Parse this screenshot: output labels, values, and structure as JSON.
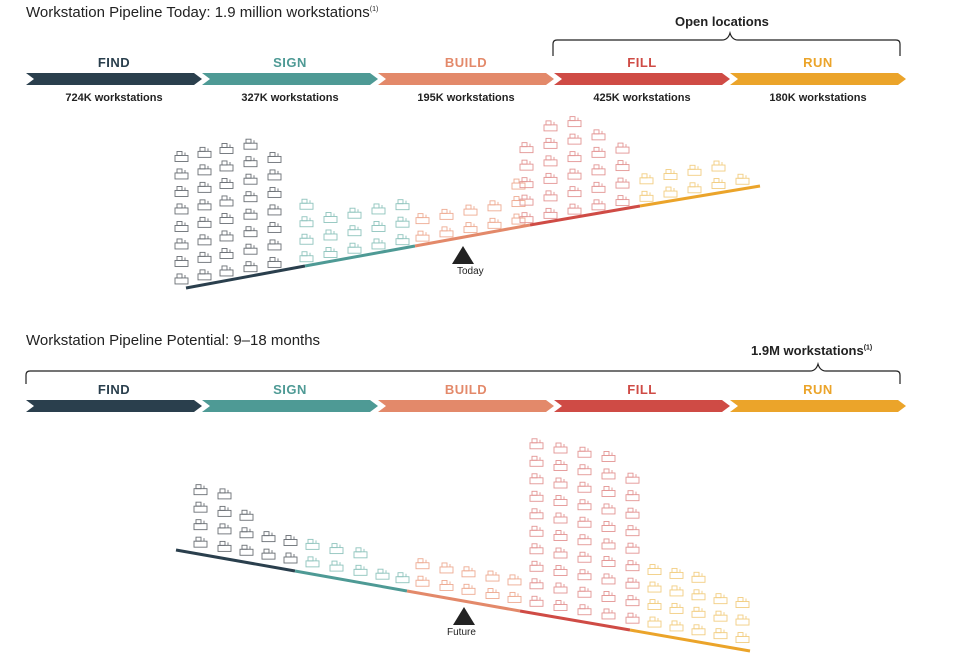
{
  "colors": {
    "find": "#2a3f4d",
    "sign": "#4e9a95",
    "build": "#e3896a",
    "fill": "#cf4b45",
    "run": "#eba42a",
    "text": "#222222",
    "find_icon": "#6a6f75",
    "sign_icon": "#8fc4bd",
    "build_icon": "#eeab92",
    "fill_icon": "#e39594",
    "run_icon": "#f2ce82"
  },
  "stages": [
    "FIND",
    "SIGN",
    "BUILD",
    "FILL",
    "RUN"
  ],
  "today": {
    "title": "Workstation Pipeline Today: 1.9 million workstations",
    "title_footnote": "(1)",
    "bracket_label": "Open locations",
    "counts": [
      "724K workstations",
      "327K workstations",
      "195K workstations",
      "425K workstations",
      "180K workstations"
    ],
    "marker_label": "Today"
  },
  "future": {
    "title": "Workstation Pipeline Potential: 9–18 months",
    "bracket_label": "1.9M workstations",
    "bracket_footnote": "(1)",
    "marker_label": "Future"
  },
  "icon_name": "workstation-desk-icon"
}
